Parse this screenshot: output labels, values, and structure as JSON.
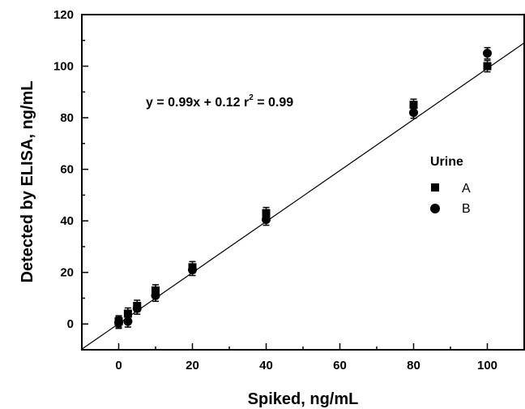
{
  "chart_data": {
    "type": "scatter",
    "xlabel": "Spiked, ng/mL",
    "ylabel": "Detected by ELISA, ng/mL",
    "xlim": [
      -10,
      110
    ],
    "ylim": [
      -10,
      120
    ],
    "xticks": [
      0,
      20,
      40,
      60,
      80,
      100
    ],
    "yticks": [
      0,
      20,
      40,
      60,
      80,
      100,
      120
    ],
    "grid": false,
    "annotation": {
      "eq_text": "y = 0.99x + 0.12  r",
      "sup": "2",
      "tail": " = 0.99"
    },
    "fit_line": {
      "slope": 0.99,
      "intercept": 0.12
    },
    "legend": {
      "title": "Urine",
      "position": "right"
    },
    "series": [
      {
        "name": "A",
        "marker": "square",
        "x": [
          0,
          2.5,
          5,
          10,
          20,
          40,
          80,
          100
        ],
        "y": [
          1,
          4,
          7,
          13,
          22,
          43,
          85,
          100
        ]
      },
      {
        "name": "B",
        "marker": "circle",
        "x": [
          0,
          2.5,
          5,
          10,
          20,
          40,
          80,
          100
        ],
        "y": [
          0.5,
          1,
          6,
          11,
          21,
          40.5,
          82,
          105
        ]
      }
    ]
  }
}
